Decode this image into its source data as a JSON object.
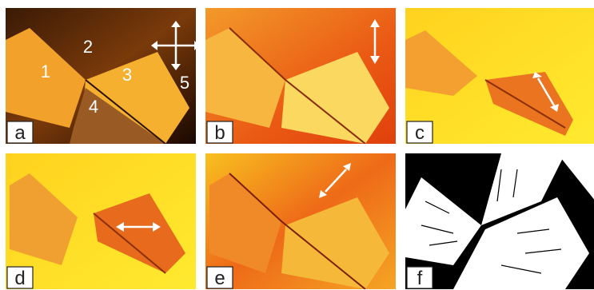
{
  "panels": [
    {
      "label": "a",
      "annotations": [
        "1",
        "2",
        "3",
        "4",
        "5"
      ]
    },
    {
      "label": "b"
    },
    {
      "label": "c"
    },
    {
      "label": "d"
    },
    {
      "label": "e"
    },
    {
      "label": "f"
    }
  ]
}
